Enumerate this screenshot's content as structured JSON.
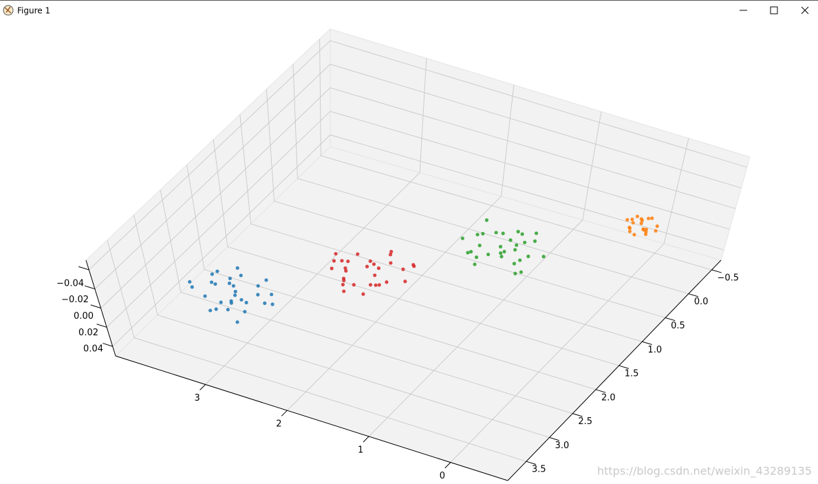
{
  "window": {
    "title": "Figure 1"
  },
  "watermark": "https://blog.csdn.net/weixin_43289135",
  "chart_data": {
    "type": "scatter3d",
    "xlim": [
      -0.7,
      4.1
    ],
    "ylim": [
      -0.7,
      3.9
    ],
    "zlim": [
      -0.05,
      0.05
    ],
    "xticks": [
      0,
      1,
      2,
      3
    ],
    "yticks": [
      {
        "value": -0.5,
        "label": "−0.5"
      },
      {
        "value": 0,
        "label": "0.0"
      },
      0.5,
      {
        "value": 1,
        "label": "1.0"
      },
      1.5,
      {
        "value": 2,
        "label": "2.0"
      },
      2.5,
      {
        "value": 3,
        "label": "3.0"
      },
      3.5
    ],
    "zticks": [
      {
        "value": -0.04,
        "label": "−0.04"
      },
      {
        "value": -0.02,
        "label": "−0.02"
      },
      {
        "value": 0,
        "label": "0.00"
      },
      0.02,
      0.04
    ],
    "grid": true,
    "series": [
      {
        "color": "#1f77b4",
        "x": [
          3.12,
          2.85,
          3.4,
          2.95,
          3.05,
          2.7,
          3.28,
          3.55,
          2.88,
          3.1,
          2.6,
          3.22,
          3.0,
          2.78,
          3.35,
          3.15,
          2.92,
          3.48,
          2.82,
          3.06,
          3.25,
          2.68,
          3.18,
          2.98,
          3.42,
          2.75,
          3.08,
          3.3,
          2.9,
          3.02
        ],
        "y": [
          2.9,
          3.1,
          2.75,
          3.3,
          2.98,
          2.85,
          3.2,
          3.05,
          2.65,
          3.4,
          3.0,
          2.8,
          3.15,
          3.25,
          2.95,
          2.7,
          3.08,
          3.12,
          2.92,
          3.35,
          2.6,
          3.02,
          2.88,
          3.18,
          2.82,
          3.45,
          3.22,
          2.96,
          2.78,
          3.04
        ],
        "z": [
          0,
          0,
          0,
          0,
          0,
          0,
          0,
          0,
          0,
          0,
          0,
          0,
          0,
          0,
          0,
          0,
          0,
          0,
          0,
          0,
          0,
          0,
          0,
          0,
          0,
          0,
          0,
          0,
          0,
          0
        ]
      },
      {
        "color": "#ff7f0e",
        "x": [
          0.02,
          -0.1,
          0.12,
          -0.05,
          0.08,
          -0.15,
          0.05,
          0.18,
          -0.08,
          0.0,
          0.1,
          -0.12,
          0.04,
          -0.02,
          0.14,
          -0.06,
          0.06,
          -0.18,
          0.09,
          -0.03
        ],
        "y": [
          -0.03,
          0.08,
          -0.12,
          0.05,
          0.1,
          -0.06,
          0.15,
          -0.02,
          0.04,
          -0.14,
          0.0,
          0.12,
          -0.08,
          0.18,
          -0.05,
          0.06,
          -0.1,
          0.02,
          0.09,
          -0.16
        ],
        "z": [
          0,
          0,
          0,
          0,
          0,
          0,
          0,
          0,
          0,
          0,
          0,
          0,
          0,
          0,
          0,
          0,
          0,
          0,
          0,
          0
        ]
      },
      {
        "color": "#2ca02c",
        "x": [
          1.08,
          0.82,
          1.3,
          0.95,
          1.02,
          0.7,
          1.25,
          1.5,
          0.88,
          1.12,
          0.6,
          1.2,
          1.0,
          0.78,
          1.36,
          1.15,
          0.92,
          1.45,
          0.8,
          1.05,
          1.28,
          0.66,
          1.18,
          0.98,
          1.4,
          0.74,
          1.06,
          1.32,
          0.9,
          1.0
        ],
        "y": [
          1.0,
          0.75,
          1.22,
          0.9,
          1.1,
          1.35,
          0.8,
          1.05,
          0.62,
          1.18,
          0.95,
          1.28,
          0.7,
          1.12,
          0.88,
          1.4,
          0.98,
          0.65,
          1.2,
          0.85,
          1.08,
          1.3,
          0.78,
          1.15,
          0.92,
          1.02,
          0.68,
          1.25,
          0.82,
          1.06
        ],
        "z": [
          0,
          0,
          0,
          0,
          0,
          0,
          0,
          0,
          0,
          0,
          0,
          0,
          0,
          0,
          0,
          0,
          0,
          0,
          0,
          0,
          0,
          0,
          0,
          0,
          0,
          0,
          0,
          0,
          0,
          0
        ]
      },
      {
        "color": "#d62728",
        "x": [
          2.1,
          1.85,
          2.3,
          1.95,
          2.05,
          1.7,
          2.25,
          2.5,
          1.88,
          2.12,
          1.62,
          2.2,
          2.0,
          1.78,
          2.38,
          2.15,
          1.92,
          2.45,
          1.82,
          2.06,
          2.28,
          1.68,
          2.18,
          1.98,
          2.4,
          1.75,
          2.08,
          2.32,
          1.9,
          2.02
        ],
        "y": [
          1.95,
          2.2,
          1.8,
          2.05,
          2.3,
          1.7,
          2.12,
          1.9,
          2.4,
          1.85,
          2.0,
          2.25,
          1.65,
          2.1,
          1.98,
          2.35,
          1.78,
          2.02,
          2.18,
          1.88,
          2.08,
          1.72,
          2.28,
          1.92,
          2.15,
          1.82,
          2.45,
          1.96,
          2.22,
          1.6
        ],
        "z": [
          0,
          0,
          0,
          0,
          0,
          0,
          0,
          0,
          0,
          0,
          0,
          0,
          0,
          0,
          0,
          0,
          0,
          0,
          0,
          0,
          0,
          0,
          0,
          0,
          0,
          0,
          0,
          0,
          0,
          0
        ]
      }
    ]
  }
}
